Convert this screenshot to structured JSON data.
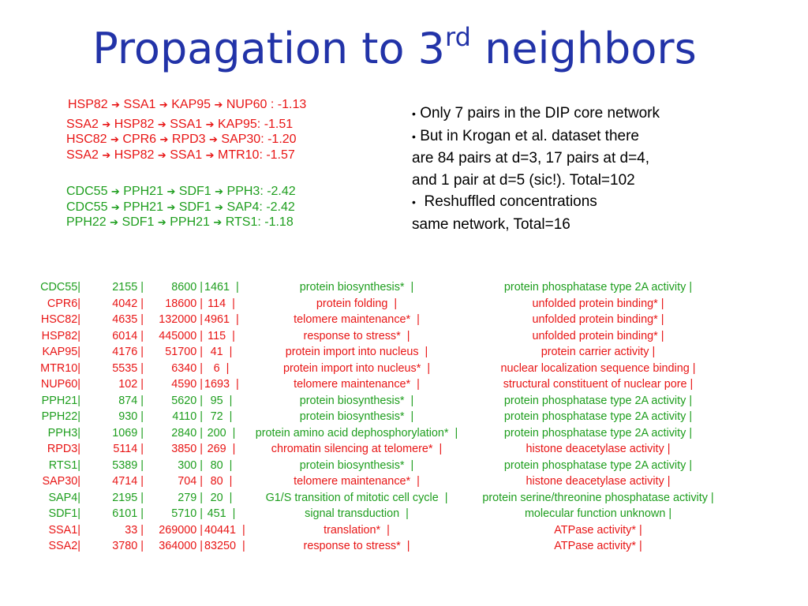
{
  "title": {
    "main": "Propagation to 3",
    "sup": "rd",
    "rest": " neighbors"
  },
  "paths_red": [
    [
      "HSP82",
      "SSA1",
      "KAP95",
      "NUP60 : -1.13"
    ],
    [
      "SSA2",
      "HSP82",
      "SSA1",
      "KAP95: -1.51"
    ],
    [
      "HSC82",
      "CPR6",
      "RPD3",
      "SAP30: -1.20"
    ],
    [
      "SSA2",
      "HSP82",
      "SSA1",
      "MTR10: -1.57"
    ]
  ],
  "paths_green": [
    [
      "CDC55",
      "PPH21",
      "SDF1",
      "PPH3: -2.42"
    ],
    [
      "CDC55",
      "PPH21",
      "SDF1",
      "SAP4: -2.42"
    ],
    [
      "PPH22",
      "SDF1",
      "PPH21",
      "RTS1: -1.18"
    ]
  ],
  "arrow_glyph": "➔",
  "bullet_glyph": "•",
  "bullets": [
    {
      "bullet": true,
      "text": "Only 7 pairs in the DIP core network"
    },
    {
      "bullet": true,
      "text": "But in Krogan et al. dataset there"
    },
    {
      "bullet": false,
      "text": "are 84 pairs at d=3, 17 pairs at d=4,"
    },
    {
      "bullet": false,
      "text": "and 1 pair at d=5 (sic!). Total=102"
    },
    {
      "bullet": true,
      "text": " Reshuffled concentrations"
    },
    {
      "bullet": false,
      "text": "same network, Total=16"
    }
  ],
  "colors": {
    "title": "#2233a8",
    "red": "#e81515",
    "green": "#1e9e1e"
  },
  "gene_rows": [
    {
      "color": "green",
      "gene": "CDC55|",
      "a": "2155 |",
      "b": "8600 |",
      "c": "1461  |",
      "process": "protein biosynthesis*  |",
      "function": "protein phosphatase type 2A activity |"
    },
    {
      "color": "red",
      "gene": "CPR6|",
      "a": "4042 |",
      "b": "18600 |",
      "c": "114  |",
      "process": "protein folding  |",
      "function": "unfolded protein binding* |"
    },
    {
      "color": "red",
      "gene": "HSC82|",
      "a": "4635 |",
      "b": "132000 |",
      "c": "4961  |",
      "process": "telomere maintenance*  |",
      "function": "unfolded protein binding* |"
    },
    {
      "color": "red",
      "gene": "HSP82|",
      "a": "6014 |",
      "b": "445000 |",
      "c": "115  |",
      "process": "response to stress*  |",
      "function": "unfolded protein binding* |"
    },
    {
      "color": "red",
      "gene": "KAP95|",
      "a": "4176 |",
      "b": "51700 |",
      "c": "41  |",
      "process": "protein import into nucleus  |",
      "function": "protein carrier activity |"
    },
    {
      "color": "red",
      "gene": "MTR10|",
      "a": "5535 |",
      "b": "6340 |",
      "c": "6  |",
      "process": "protein import into nucleus*  |",
      "function": "nuclear localization sequence binding |"
    },
    {
      "color": "red",
      "gene": "NUP60|",
      "a": "102 |",
      "b": "4590 |",
      "c": "1693  |",
      "process": "telomere maintenance*  |",
      "function": "structural constituent of nuclear pore |"
    },
    {
      "color": "green",
      "gene": "PPH21|",
      "a": "874 |",
      "b": "5620 |",
      "c": "95  |",
      "process": "protein biosynthesis*  |",
      "function": "protein phosphatase type 2A activity |"
    },
    {
      "color": "green",
      "gene": "PPH22|",
      "a": "930 |",
      "b": "4110 |",
      "c": "72  |",
      "process": "protein biosynthesis*  |",
      "function": "protein phosphatase type 2A activity |"
    },
    {
      "color": "green",
      "gene": "PPH3|",
      "a": "1069 |",
      "b": "2840 |",
      "c": "200  |",
      "process": "protein amino acid dephosphorylation*  |",
      "function": "protein phosphatase type 2A activity |"
    },
    {
      "color": "red",
      "gene": "RPD3|",
      "a": "5114 |",
      "b": "3850 |",
      "c": "269  |",
      "process": "chromatin silencing at telomere*  |",
      "function": "histone deacetylase activity |"
    },
    {
      "color": "green",
      "gene": "RTS1|",
      "a": "5389 |",
      "b": "300 |",
      "c": "80  |",
      "process": "protein biosynthesis*  |",
      "function": "protein phosphatase type 2A activity |"
    },
    {
      "color": "red",
      "gene": "SAP30|",
      "a": "4714 |",
      "b": "704 |",
      "c": "80  |",
      "process": "telomere maintenance*  |",
      "function": "histone deacetylase activity |"
    },
    {
      "color": "green",
      "gene": "SAP4|",
      "a": "2195 |",
      "b": "279 |",
      "c": "20  |",
      "process": "G1/S transition of mitotic cell cycle  |",
      "function": "protein serine/threonine phosphatase activity |"
    },
    {
      "color": "green",
      "gene": "SDF1|",
      "a": "6101 |",
      "b": "5710 |",
      "c": "451  |",
      "process": "signal transduction  |",
      "function": "molecular function unknown |"
    },
    {
      "color": "red",
      "gene": "SSA1|",
      "a": "33 |",
      "b": "269000 |",
      "c": "40441  |",
      "process": "translation*  |",
      "function": "ATPase activity* |"
    },
    {
      "color": "red",
      "gene": "SSA2|",
      "a": "3780 |",
      "b": "364000 |",
      "c": "83250  |",
      "process": "response to stress*  |",
      "function": "ATPase activity* |"
    }
  ]
}
